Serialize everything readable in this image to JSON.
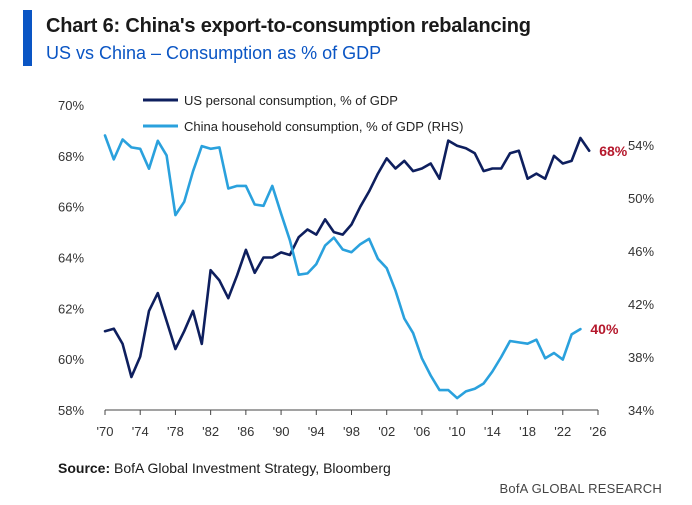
{
  "header": {
    "title": "Chart 6: China's export-to-consumption rebalancing",
    "subtitle": "US vs China – Consumption as % of GDP"
  },
  "source": {
    "label": "Source:",
    "text": " BofA Global Investment Strategy, Bloomberg"
  },
  "footer": {
    "text": "BofA GLOBAL RESEARCH"
  },
  "colors": {
    "us": "#0e1f5e",
    "china": "#2aa1dd",
    "accent": "#0a55c4",
    "end_label": "#b5182c"
  },
  "chart_data": {
    "type": "line",
    "xlim": [
      1970,
      2026
    ],
    "x_ticks": [
      1970,
      1974,
      1978,
      1982,
      1986,
      1990,
      1994,
      1998,
      2002,
      2006,
      2010,
      2014,
      2018,
      2022,
      2026
    ],
    "x_tick_labels": [
      "'70",
      "'74",
      "'78",
      "'82",
      "'86",
      "'90",
      "'94",
      "'98",
      "'02",
      "'06",
      "'10",
      "'14",
      "'18",
      "'22",
      "'26"
    ],
    "y_left": {
      "lim": [
        58,
        70
      ],
      "ticks": [
        58,
        60,
        62,
        64,
        66,
        68,
        70
      ],
      "tick_labels": [
        "58%",
        "60%",
        "62%",
        "64%",
        "66%",
        "68%",
        "70%"
      ]
    },
    "y_right": {
      "lim": [
        34,
        57
      ],
      "ticks": [
        34,
        38,
        42,
        46,
        50,
        54
      ],
      "tick_labels": [
        "34%",
        "38%",
        "42%",
        "46%",
        "50%",
        "54%"
      ]
    },
    "grid": false,
    "legend_position": "top-left",
    "series": [
      {
        "name": "US personal consumption, % of GDP",
        "axis": "left",
        "color": "#0e1f5e",
        "end_label": "68%",
        "x": [
          1970,
          1971,
          1972,
          1973,
          1974,
          1975,
          1976,
          1977,
          1978,
          1979,
          1980,
          1981,
          1982,
          1983,
          1984,
          1985,
          1986,
          1987,
          1988,
          1989,
          1990,
          1991,
          1992,
          1993,
          1994,
          1995,
          1996,
          1997,
          1998,
          1999,
          2000,
          2001,
          2002,
          2003,
          2004,
          2005,
          2006,
          2007,
          2008,
          2009,
          2010,
          2011,
          2012,
          2013,
          2014,
          2015,
          2016,
          2017,
          2018,
          2019,
          2020,
          2021,
          2022,
          2023,
          2024,
          2025
        ],
        "values": [
          61.1,
          61.2,
          60.6,
          59.3,
          60.1,
          61.9,
          62.6,
          61.5,
          60.4,
          61.1,
          61.9,
          60.6,
          63.5,
          63.1,
          62.4,
          63.3,
          64.3,
          63.4,
          64.0,
          64.0,
          64.2,
          64.1,
          64.8,
          65.1,
          64.9,
          65.5,
          65.0,
          64.9,
          65.3,
          66.0,
          66.6,
          67.3,
          67.9,
          67.5,
          67.8,
          67.4,
          67.5,
          67.7,
          67.1,
          68.6,
          68.4,
          68.3,
          68.1,
          67.4,
          67.5,
          67.5,
          68.1,
          68.2,
          67.1,
          67.3,
          67.1,
          68.0,
          67.7,
          67.8,
          68.7,
          68.2
        ]
      },
      {
        "name": "China household consumption, % of GDP (RHS)",
        "axis": "right",
        "color": "#2aa1dd",
        "end_label": "40%",
        "x": [
          1970,
          1971,
          1972,
          1973,
          1974,
          1975,
          1976,
          1977,
          1978,
          1979,
          1980,
          1981,
          1982,
          1983,
          1984,
          1985,
          1986,
          1987,
          1988,
          1989,
          1990,
          1991,
          1992,
          1993,
          1994,
          1995,
          1996,
          1997,
          1998,
          1999,
          2000,
          2001,
          2002,
          2003,
          2004,
          2005,
          2006,
          2007,
          2008,
          2009,
          2010,
          2011,
          2012,
          2013,
          2014,
          2015,
          2016,
          2017,
          2018,
          2019,
          2020,
          2021,
          2022,
          2023,
          2024
        ],
        "values": [
          54.7,
          52.9,
          54.4,
          53.8,
          53.7,
          52.2,
          54.3,
          53.2,
          48.7,
          49.7,
          52.0,
          53.9,
          53.7,
          53.8,
          50.7,
          50.9,
          50.9,
          49.5,
          49.4,
          50.9,
          48.8,
          46.8,
          44.2,
          44.3,
          45.0,
          46.4,
          47.0,
          46.1,
          45.9,
          46.5,
          46.9,
          45.4,
          44.7,
          43.0,
          40.9,
          39.8,
          37.9,
          36.6,
          35.5,
          35.5,
          34.9,
          35.4,
          35.6,
          36.0,
          36.9,
          38.0,
          39.2,
          39.1,
          39.0,
          39.3,
          37.9,
          38.3,
          37.8,
          39.7,
          40.1
        ]
      }
    ]
  }
}
